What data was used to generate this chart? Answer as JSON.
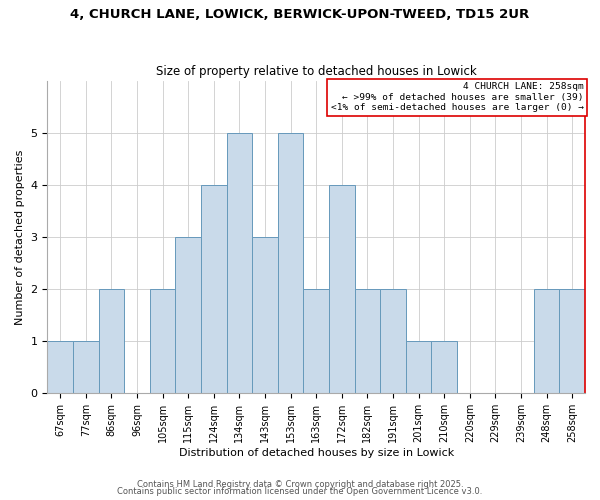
{
  "title1": "4, CHURCH LANE, LOWICK, BERWICK-UPON-TWEED, TD15 2UR",
  "title2": "Size of property relative to detached houses in Lowick",
  "xlabel": "Distribution of detached houses by size in Lowick",
  "ylabel": "Number of detached properties",
  "bar_labels": [
    "67sqm",
    "77sqm",
    "86sqm",
    "96sqm",
    "105sqm",
    "115sqm",
    "124sqm",
    "134sqm",
    "143sqm",
    "153sqm",
    "163sqm",
    "172sqm",
    "182sqm",
    "191sqm",
    "201sqm",
    "210sqm",
    "220sqm",
    "229sqm",
    "239sqm",
    "248sqm",
    "258sqm"
  ],
  "bar_values": [
    1,
    1,
    2,
    0,
    2,
    3,
    4,
    5,
    3,
    5,
    2,
    4,
    2,
    2,
    1,
    1,
    0,
    0,
    0,
    2,
    2
  ],
  "bar_color": "#c9daea",
  "bar_edge_color": "#6699bb",
  "annotation_title": "4 CHURCH LANE: 258sqm",
  "annotation_line1": "← >99% of detached houses are smaller (39)",
  "annotation_line2": "<1% of semi-detached houses are larger (0) →",
  "annotation_box_color": "#dd0000",
  "ylim": [
    0,
    6
  ],
  "yticks": [
    0,
    1,
    2,
    3,
    4,
    5
  ],
  "footnote1": "Contains HM Land Registry data © Crown copyright and database right 2025.",
  "footnote2": "Contains public sector information licensed under the Open Government Licence v3.0.",
  "bg_color": "#ffffff",
  "grid_color": "#cccccc"
}
